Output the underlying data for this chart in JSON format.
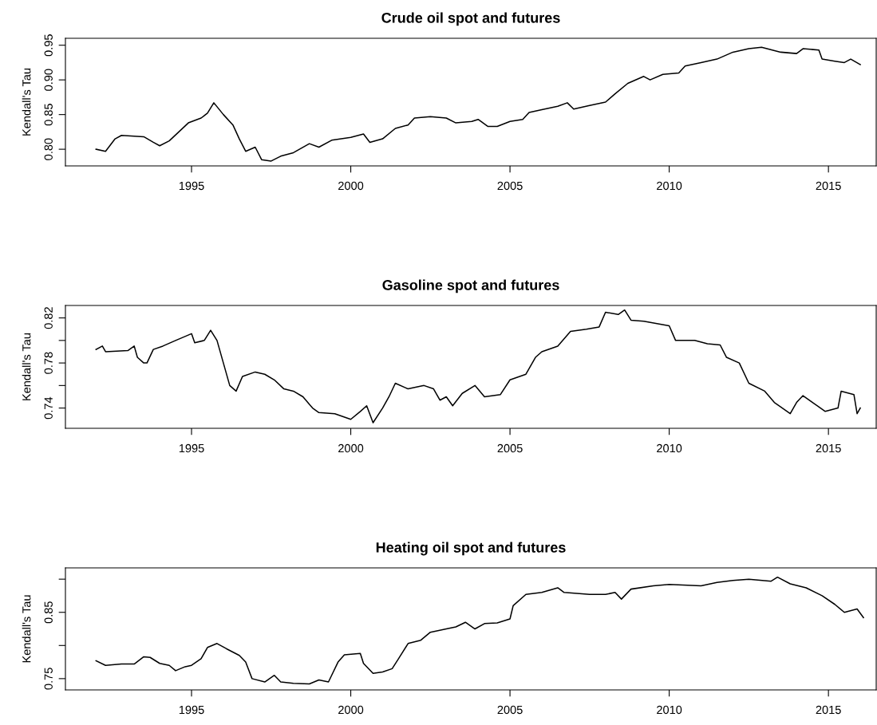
{
  "chart_data": [
    {
      "type": "line",
      "title": "Crude oil spot and futures",
      "ylabel": "Kendall's Tau",
      "grid": false,
      "xlim": [
        1991.04,
        2016.5
      ],
      "xticks": [
        1995,
        2000,
        2005,
        2010,
        2015
      ],
      "ylim": [
        0.776,
        0.96
      ],
      "yticks": [
        {
          "value": 0.8,
          "label": "0.80"
        },
        0.85,
        {
          "value": 0.9,
          "label": "0.90"
        },
        0.95
      ],
      "series": [
        {
          "color": "#000000",
          "x": [
            1992.0,
            1992.3,
            1992.6,
            1992.8,
            1993.5,
            1993.8,
            1994.0,
            1994.3,
            1994.6,
            1994.9,
            1995.3,
            1995.5,
            1995.7,
            1996.0,
            1996.3,
            1996.5,
            1996.7,
            1997.0,
            1997.2,
            1997.5,
            1997.8,
            1998.2,
            1998.7,
            1999.0,
            1999.4,
            2000.0,
            2000.4,
            2000.6,
            2001.0,
            2001.4,
            2001.8,
            2002.0,
            2002.5,
            2003.0,
            2003.3,
            2003.8,
            2004.0,
            2004.3,
            2004.6,
            2005.0,
            2005.4,
            2005.6,
            2006.0,
            2006.5,
            2006.8,
            2007.0,
            2007.5,
            2008.0,
            2008.3,
            2008.7,
            2009.2,
            2009.4,
            2009.8,
            2010.3,
            2010.5,
            2011.0,
            2011.5,
            2012.0,
            2012.5,
            2012.9,
            2013.5,
            2014.0,
            2014.2,
            2014.7,
            2014.8,
            2015.2,
            2015.5,
            2015.7,
            2016.0
          ],
          "values": [
            0.8,
            0.797,
            0.815,
            0.82,
            0.818,
            0.81,
            0.805,
            0.812,
            0.825,
            0.838,
            0.845,
            0.852,
            0.867,
            0.85,
            0.835,
            0.815,
            0.797,
            0.803,
            0.785,
            0.783,
            0.79,
            0.795,
            0.808,
            0.803,
            0.813,
            0.817,
            0.822,
            0.81,
            0.815,
            0.83,
            0.835,
            0.845,
            0.847,
            0.845,
            0.838,
            0.84,
            0.843,
            0.833,
            0.833,
            0.84,
            0.843,
            0.853,
            0.857,
            0.862,
            0.867,
            0.858,
            0.863,
            0.868,
            0.88,
            0.895,
            0.905,
            0.9,
            0.908,
            0.91,
            0.92,
            0.925,
            0.93,
            0.94,
            0.945,
            0.947,
            0.94,
            0.938,
            0.945,
            0.943,
            0.93,
            0.927,
            0.925,
            0.93,
            0.922
          ]
        }
      ]
    },
    {
      "type": "line",
      "title": "Gasoline spot and futures",
      "ylabel": "Kendall's Tau",
      "grid": false,
      "xlim": [
        1991.04,
        2016.5
      ],
      "xticks": [
        1995,
        2000,
        2005,
        2010,
        2015
      ],
      "ylim": [
        0.722,
        0.831
      ],
      "yticks": [
        0.74,
        {
          "value": 0.76,
          "label": null
        },
        0.78,
        {
          "value": 0.8,
          "label": null
        },
        0.82
      ],
      "series": [
        {
          "color": "#000000",
          "x": [
            1992.0,
            1992.2,
            1992.3,
            1993.0,
            1993.2,
            1993.3,
            1993.5,
            1993.6,
            1993.8,
            1994.1,
            1994.5,
            1995.0,
            1995.1,
            1995.4,
            1995.6,
            1995.8,
            1996.0,
            1996.2,
            1996.4,
            1996.6,
            1997.0,
            1997.3,
            1997.6,
            1997.9,
            1998.2,
            1998.5,
            1998.8,
            1999.0,
            1999.5,
            2000.0,
            2000.3,
            2000.5,
            2000.7,
            2001.0,
            2001.2,
            2001.4,
            2001.8,
            2002.3,
            2002.6,
            2002.8,
            2003.0,
            2003.2,
            2003.5,
            2003.9,
            2004.2,
            2004.7,
            2005.0,
            2005.5,
            2005.8,
            2006.0,
            2006.5,
            2006.9,
            2007.4,
            2007.8,
            2008.0,
            2008.4,
            2008.6,
            2008.8,
            2009.2,
            2010.0,
            2010.2,
            2010.8,
            2011.2,
            2011.6,
            2011.8,
            2012.2,
            2012.5,
            2013.0,
            2013.3,
            2013.8,
            2014.0,
            2014.2,
            2014.5,
            2014.9,
            2015.3,
            2015.4,
            2015.8,
            2015.9,
            2016.0
          ],
          "values": [
            0.792,
            0.795,
            0.79,
            0.791,
            0.795,
            0.785,
            0.78,
            0.78,
            0.792,
            0.795,
            0.8,
            0.806,
            0.798,
            0.8,
            0.809,
            0.8,
            0.78,
            0.76,
            0.755,
            0.768,
            0.772,
            0.77,
            0.765,
            0.757,
            0.755,
            0.75,
            0.74,
            0.736,
            0.735,
            0.73,
            0.737,
            0.742,
            0.727,
            0.74,
            0.75,
            0.762,
            0.757,
            0.76,
            0.757,
            0.747,
            0.75,
            0.742,
            0.753,
            0.76,
            0.75,
            0.752,
            0.765,
            0.77,
            0.785,
            0.79,
            0.795,
            0.808,
            0.81,
            0.812,
            0.825,
            0.823,
            0.827,
            0.818,
            0.817,
            0.813,
            0.8,
            0.8,
            0.797,
            0.796,
            0.785,
            0.78,
            0.762,
            0.755,
            0.745,
            0.735,
            0.745,
            0.751,
            0.745,
            0.737,
            0.74,
            0.755,
            0.752,
            0.735,
            0.74
          ]
        }
      ]
    },
    {
      "type": "line",
      "title": "Heating oil spot and futures",
      "ylabel": "Kendall's Tau",
      "grid": false,
      "xlim": [
        1991.04,
        2016.5
      ],
      "xticks": [
        1995,
        2000,
        2005,
        2010,
        2015
      ],
      "ylim": [
        0.733,
        0.917
      ],
      "yticks": [
        0.75,
        {
          "value": 0.8,
          "label": null
        },
        0.85,
        {
          "value": 0.9,
          "label": null
        }
      ],
      "series": [
        {
          "color": "#000000",
          "x": [
            1992.0,
            1992.3,
            1992.8,
            1993.2,
            1993.5,
            1993.7,
            1994.0,
            1994.3,
            1994.5,
            1994.8,
            1995.0,
            1995.3,
            1995.5,
            1995.8,
            1996.1,
            1996.5,
            1996.7,
            1996.9,
            1997.3,
            1997.6,
            1997.8,
            1998.2,
            1998.7,
            1999.0,
            1999.3,
            1999.6,
            1999.8,
            2000.3,
            2000.4,
            2000.7,
            2001.0,
            2001.3,
            2001.5,
            2001.8,
            2002.2,
            2002.5,
            2003.0,
            2003.3,
            2003.6,
            2003.9,
            2004.2,
            2004.6,
            2005.0,
            2005.1,
            2005.5,
            2006.0,
            2006.5,
            2006.7,
            2007.5,
            2008.0,
            2008.3,
            2008.5,
            2008.8,
            2009.5,
            2010.0,
            2011.0,
            2011.5,
            2012.0,
            2012.5,
            2013.2,
            2013.4,
            2013.8,
            2014.3,
            2014.8,
            2015.2,
            2015.5,
            2015.9,
            2016.1
          ],
          "values": [
            0.777,
            0.77,
            0.772,
            0.772,
            0.783,
            0.782,
            0.773,
            0.77,
            0.762,
            0.768,
            0.77,
            0.78,
            0.797,
            0.803,
            0.795,
            0.785,
            0.775,
            0.75,
            0.745,
            0.755,
            0.745,
            0.743,
            0.742,
            0.748,
            0.745,
            0.775,
            0.786,
            0.788,
            0.773,
            0.758,
            0.76,
            0.765,
            0.78,
            0.803,
            0.808,
            0.82,
            0.825,
            0.828,
            0.835,
            0.825,
            0.833,
            0.834,
            0.84,
            0.86,
            0.877,
            0.88,
            0.887,
            0.88,
            0.877,
            0.877,
            0.88,
            0.87,
            0.885,
            0.89,
            0.892,
            0.89,
            0.895,
            0.898,
            0.9,
            0.897,
            0.903,
            0.893,
            0.887,
            0.875,
            0.862,
            0.85,
            0.855,
            0.842
          ]
        }
      ]
    }
  ]
}
